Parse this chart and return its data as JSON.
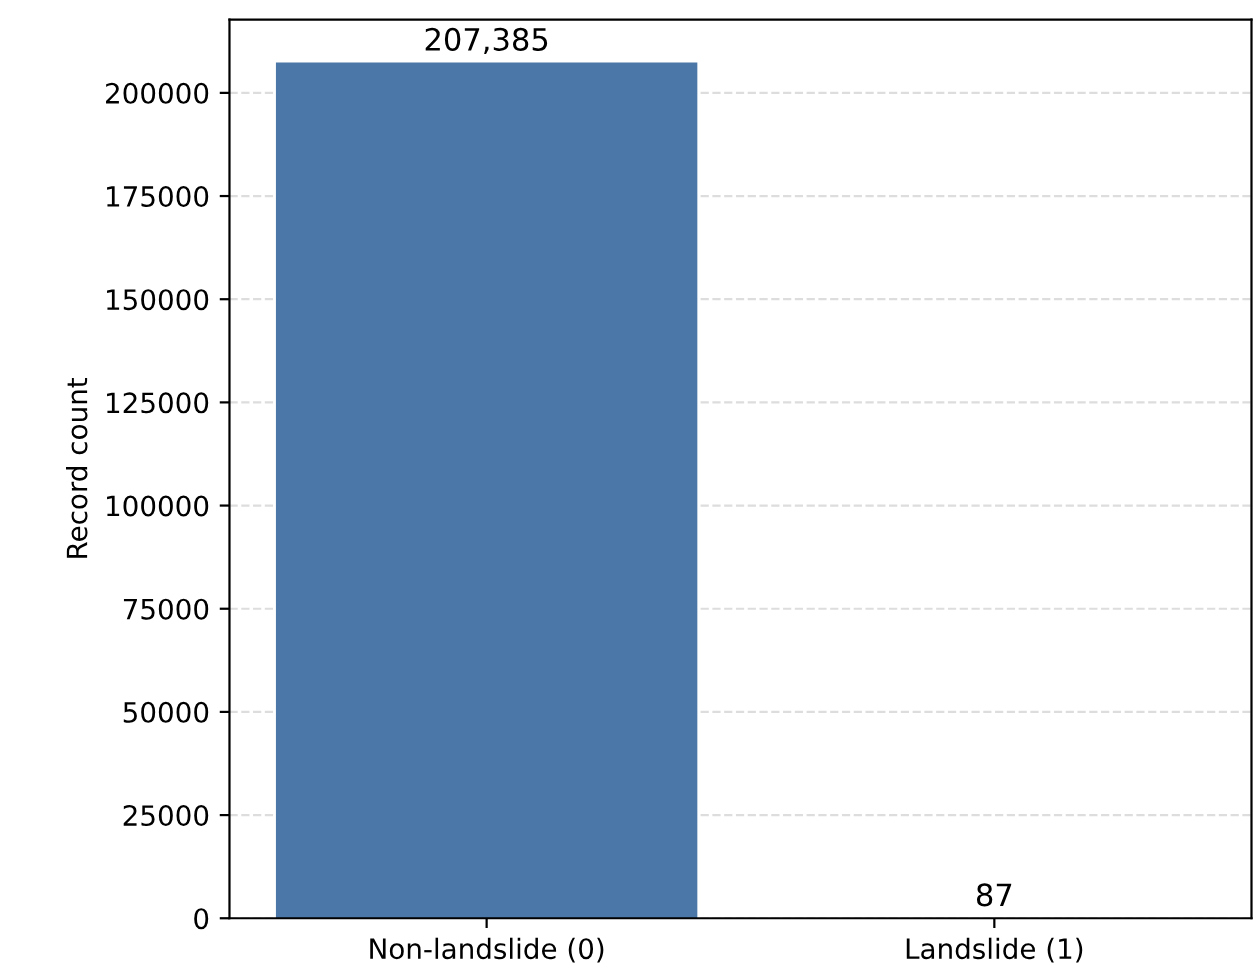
{
  "chart_data": {
    "type": "bar",
    "ylabel": "Record count",
    "categories": [
      "Non-landslide (0)",
      "Landslide (1)"
    ],
    "values": [
      207385,
      87
    ],
    "color": "#4a76a8",
    "value_labels": [
      "207,385",
      "87"
    ],
    "ylim": [
      0,
      217754
    ],
    "yticks": [
      0,
      25000,
      50000,
      75000,
      100000,
      125000,
      150000,
      175000,
      200000
    ],
    "grid": "y"
  }
}
